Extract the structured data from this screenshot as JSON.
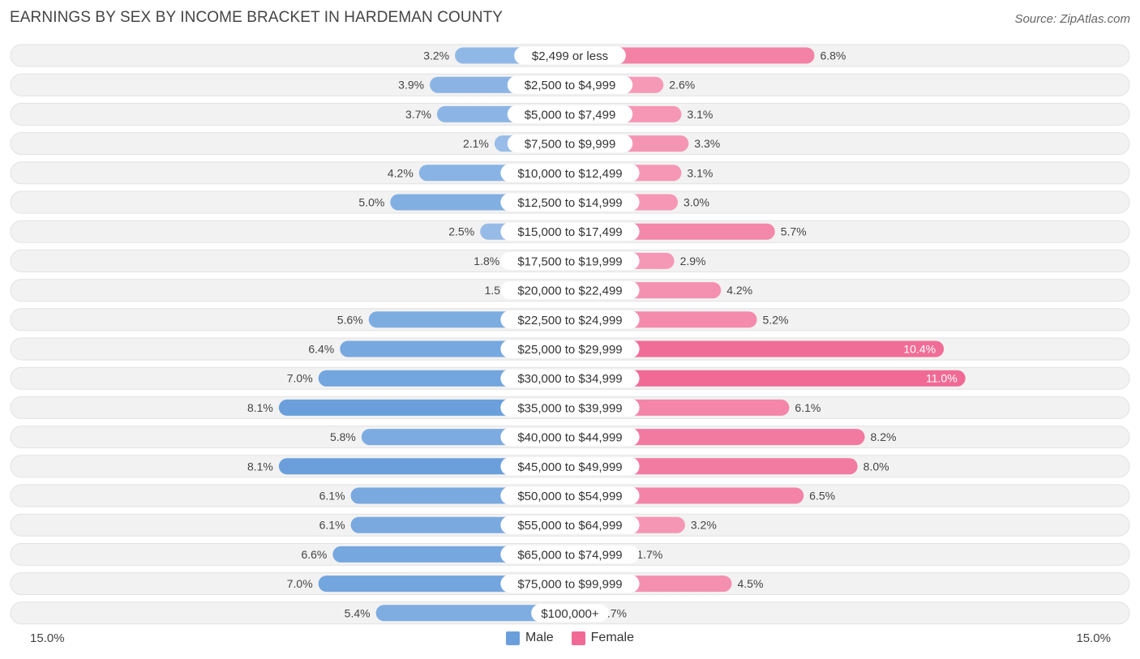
{
  "header": {
    "title": "EARNINGS BY SEX BY INCOME BRACKET IN HARDEMAN COUNTY",
    "source": "Source: ZipAtlas.com"
  },
  "axis": {
    "left_label": "15.0%",
    "right_label": "15.0%"
  },
  "legend": {
    "male": "Male",
    "female": "Female"
  },
  "colors": {
    "male_light": "#a9c8ec",
    "male_dark": "#6a9fdc",
    "female_light": "#f7a8c1",
    "female_dark": "#f06a95",
    "row_bg": "#f2f2f2",
    "row_border": "#e2e2e2"
  },
  "chart_data": {
    "type": "bar",
    "orientation": "horizontal-diverging",
    "title": "EARNINGS BY SEX BY INCOME BRACKET IN HARDEMAN COUNTY",
    "xlim": [
      -15.0,
      15.0
    ],
    "unit": "%",
    "categories": [
      "$2,499 or less",
      "$2,500 to $4,999",
      "$5,000 to $7,499",
      "$7,500 to $9,999",
      "$10,000 to $12,499",
      "$12,500 to $14,999",
      "$15,000 to $17,499",
      "$17,500 to $19,999",
      "$20,000 to $22,499",
      "$22,500 to $24,999",
      "$25,000 to $29,999",
      "$30,000 to $34,999",
      "$35,000 to $39,999",
      "$40,000 to $44,999",
      "$45,000 to $49,999",
      "$50,000 to $54,999",
      "$55,000 to $64,999",
      "$65,000 to $74,999",
      "$75,000 to $99,999",
      "$100,000+"
    ],
    "series": [
      {
        "name": "Male",
        "values": [
          3.2,
          3.9,
          3.7,
          2.1,
          4.2,
          5.0,
          2.5,
          1.8,
          1.5,
          5.6,
          6.4,
          7.0,
          8.1,
          5.8,
          8.1,
          6.1,
          6.1,
          6.6,
          7.0,
          5.4
        ],
        "labels": [
          "3.2%",
          "3.9%",
          "3.7%",
          "2.1%",
          "4.2%",
          "5.0%",
          "2.5%",
          "1.8%",
          "1.5%",
          "5.6%",
          "6.4%",
          "7.0%",
          "8.1%",
          "5.8%",
          "8.1%",
          "6.1%",
          "6.1%",
          "6.6%",
          "7.0%",
          "5.4%"
        ]
      },
      {
        "name": "Female",
        "values": [
          6.8,
          2.6,
          3.1,
          3.3,
          3.1,
          3.0,
          5.7,
          2.9,
          4.2,
          5.2,
          10.4,
          11.0,
          6.1,
          8.2,
          8.0,
          6.5,
          3.2,
          1.7,
          4.5,
          0.7
        ],
        "labels": [
          "6.8%",
          "2.6%",
          "3.1%",
          "3.3%",
          "3.1%",
          "3.0%",
          "5.7%",
          "2.9%",
          "4.2%",
          "5.2%",
          "10.4%",
          "11.0%",
          "6.1%",
          "8.2%",
          "8.0%",
          "6.5%",
          "3.2%",
          "1.7%",
          "4.5%",
          "0.7%"
        ]
      }
    ]
  }
}
